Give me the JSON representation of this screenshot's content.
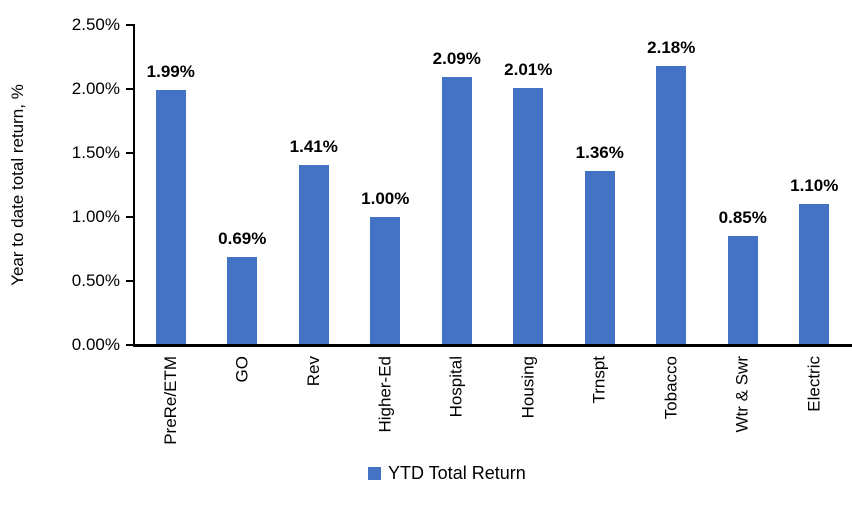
{
  "chart_data": {
    "type": "bar",
    "title": "",
    "categories": [
      "PreRe/ETM",
      "GO",
      "Rev",
      "Higher-Ed",
      "Hospital",
      "Housing",
      "Trnspt",
      "Tobacco",
      "Wtr & Swr",
      "Electric"
    ],
    "values": [
      1.99,
      0.69,
      1.41,
      1.0,
      2.09,
      2.01,
      1.36,
      2.18,
      0.85,
      1.1
    ],
    "data_labels": [
      "1.99%",
      "0.69%",
      "1.41%",
      "1.00%",
      "2.09%",
      "2.01%",
      "1.36%",
      "2.18%",
      "0.85%",
      "1.10%"
    ],
    "xlabel": "",
    "ylabel": "Year to date total return, %",
    "ylim": [
      0,
      2.5
    ],
    "yticks": [
      {
        "value": 0.0,
        "label": "0.00%"
      },
      {
        "value": 0.5,
        "label": "0.50%"
      },
      {
        "value": 1.0,
        "label": "1.00%"
      },
      {
        "value": 1.5,
        "label": "1.50%"
      },
      {
        "value": 2.0,
        "label": "2.00%"
      },
      {
        "value": 2.5,
        "label": "2.50%"
      }
    ],
    "grid": false,
    "legend": {
      "position": "bottom",
      "entries": [
        {
          "label": "YTD Total Return",
          "color": "#4472C4"
        }
      ]
    },
    "bar_color": "#4472C4",
    "axis_color": "#000000",
    "text_color": "#000000"
  }
}
